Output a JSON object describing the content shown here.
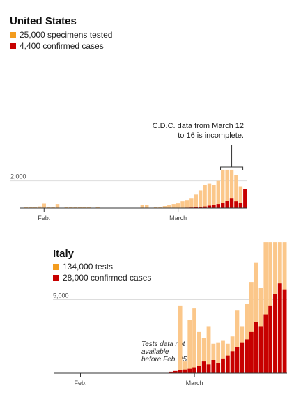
{
  "colors": {
    "tests": "#fbc78a",
    "cases": "#c70000",
    "legend_tests": "#f39c1f",
    "grid": "#dddddd",
    "axis": "#333333"
  },
  "chart_data": [
    {
      "type": "bar",
      "title": "United States",
      "legend": [
        {
          "key": "tests",
          "label": "25,000 specimens tested"
        },
        {
          "key": "cases",
          "label": "4,400 confirmed cases"
        }
      ],
      "y_ticks": [
        {
          "value": 2000,
          "label": "2,000"
        }
      ],
      "x_ticks": [
        {
          "index": 5,
          "label": "Feb."
        },
        {
          "index": 35,
          "label": "March"
        }
      ],
      "annotation": {
        "lines": [
          "C.D.C. data from March 12",
          "to 16 is incomplete."
        ],
        "from_index": 45,
        "to_index": 49
      },
      "ylim": [
        0,
        3000
      ],
      "series": [
        {
          "key": "tests",
          "name": "Specimens tested",
          "values": [
            0,
            80,
            80,
            80,
            120,
            330,
            80,
            80,
            300,
            0,
            80,
            80,
            80,
            80,
            80,
            80,
            0,
            80,
            0,
            0,
            0,
            0,
            0,
            0,
            0,
            0,
            0,
            250,
            250,
            0,
            80,
            80,
            150,
            200,
            300,
            350,
            500,
            600,
            700,
            1000,
            1300,
            1700,
            1800,
            1700,
            2000,
            2800,
            2800,
            2800,
            2400,
            1600,
            0
          ]
        },
        {
          "key": "cases",
          "name": "Confirmed cases",
          "values": [
            0,
            0,
            0,
            0,
            0,
            0,
            0,
            0,
            0,
            0,
            0,
            0,
            0,
            0,
            0,
            0,
            0,
            0,
            0,
            0,
            0,
            0,
            0,
            0,
            0,
            0,
            0,
            0,
            0,
            0,
            0,
            0,
            0,
            0,
            0,
            0,
            20,
            30,
            40,
            60,
            80,
            120,
            180,
            250,
            300,
            400,
            550,
            700,
            500,
            400,
            1400
          ]
        }
      ]
    },
    {
      "type": "bar",
      "title": "Italy",
      "legend": [
        {
          "key": "tests",
          "label": "134,000 tests"
        },
        {
          "key": "cases",
          "label": "28,000 confirmed cases"
        }
      ],
      "y_ticks": [
        {
          "value": 5000,
          "label": "5,000"
        }
      ],
      "x_ticks": [
        {
          "index": 5,
          "label": "Feb."
        },
        {
          "index": 29,
          "label": "March"
        }
      ],
      "note_lines": [
        "Tests data not",
        "available",
        "before Feb. 25"
      ],
      "ylim": [
        0,
        9000
      ],
      "series": [
        {
          "key": "tests",
          "name": "Tests",
          "values": [
            0,
            0,
            0,
            0,
            0,
            0,
            0,
            0,
            0,
            0,
            0,
            0,
            0,
            0,
            0,
            0,
            0,
            0,
            0,
            0,
            0,
            0,
            0,
            0,
            0,
            0,
            4600,
            800,
            3600,
            4400,
            2800,
            2400,
            3200,
            2000,
            2100,
            2200,
            2000,
            2500,
            4300,
            3200,
            4700,
            6200,
            7500,
            5800,
            8900,
            8900,
            8900,
            8900,
            8900
          ]
        },
        {
          "key": "cases",
          "name": "Confirmed cases",
          "values": [
            0,
            0,
            0,
            0,
            0,
            0,
            0,
            0,
            0,
            0,
            0,
            0,
            0,
            0,
            0,
            0,
            0,
            0,
            0,
            0,
            0,
            0,
            0,
            0,
            100,
            150,
            200,
            250,
            300,
            400,
            500,
            800,
            600,
            900,
            700,
            1000,
            1200,
            1500,
            1800,
            2100,
            2300,
            2800,
            3500,
            3200,
            4000,
            4600,
            5400,
            6100,
            5700
          ]
        }
      ]
    }
  ]
}
